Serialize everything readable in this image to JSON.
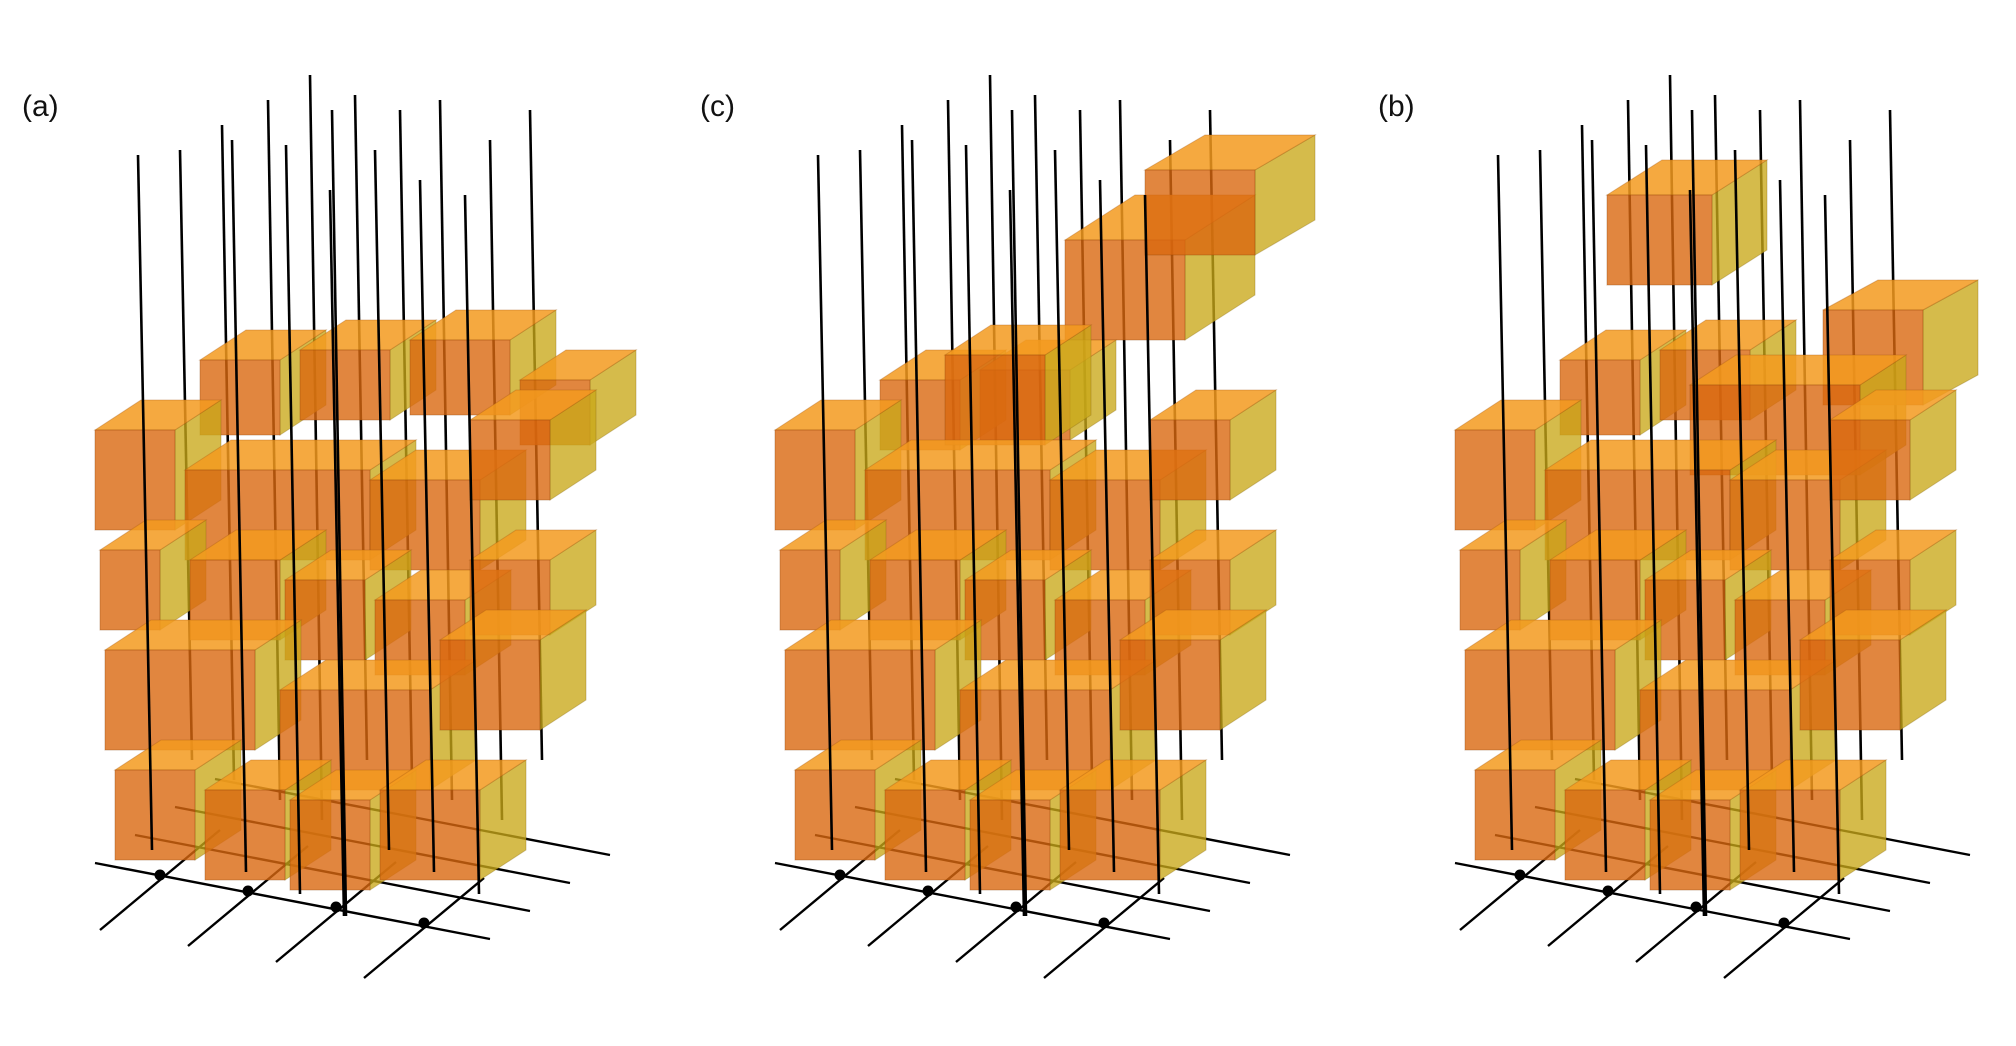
{
  "panels": [
    {
      "id": "a",
      "label": "(a)"
    },
    {
      "id": "c",
      "label": "(c)"
    },
    {
      "id": "b",
      "label": "(b)"
    }
  ],
  "colors": {
    "box_front": "#d9680f",
    "box_top": "#f39a1e",
    "box_side": "#c9a818",
    "rod": "#000000",
    "grid": "#000000"
  }
}
